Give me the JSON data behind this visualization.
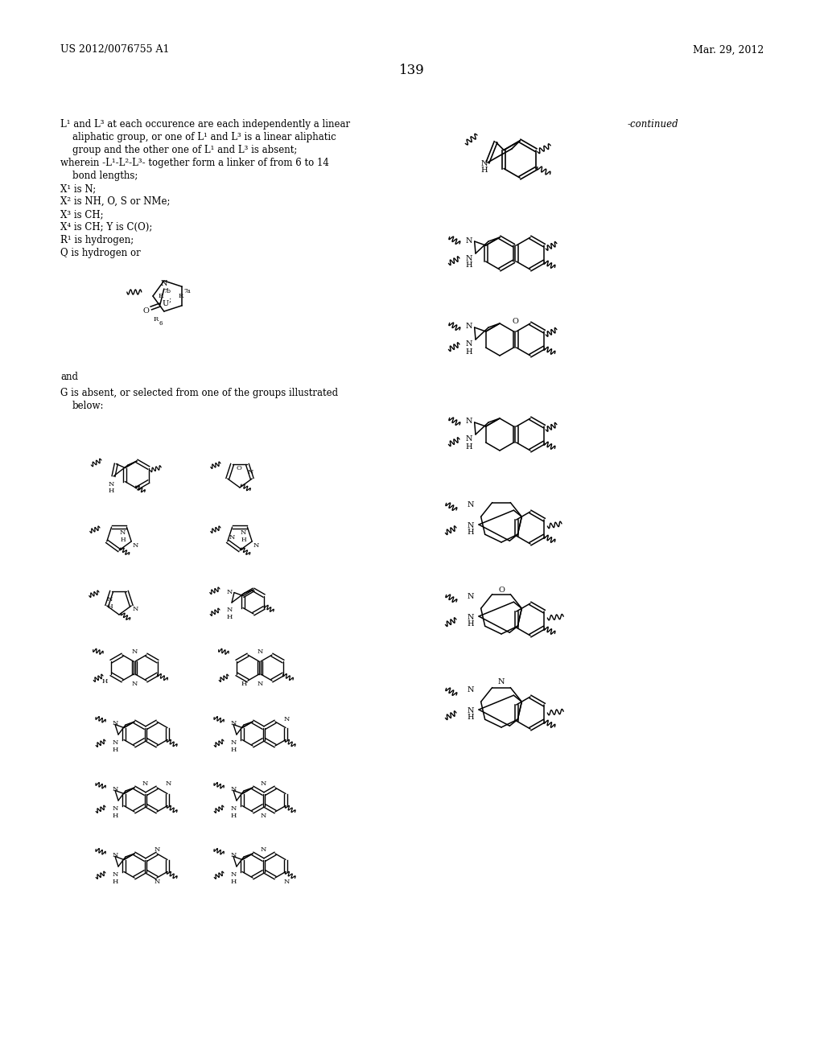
{
  "page_number": "139",
  "header_left": "US 2012/0076755 A1",
  "header_right": "Mar. 29, 2012",
  "background_color": "#ffffff",
  "text_color": "#000000",
  "continued_label": "-continued",
  "font_size_header": 9,
  "font_size_body": 8.5,
  "font_size_page_num": 12
}
